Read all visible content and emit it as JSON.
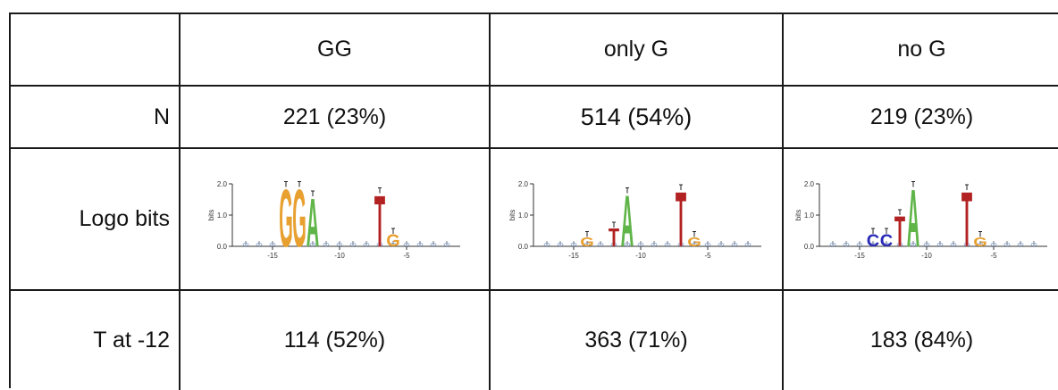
{
  "table": {
    "columns": [
      "",
      "GG",
      "only G",
      "no G"
    ],
    "rows": [
      {
        "label": "N",
        "values": [
          "221 (23%)",
          "514 (54%)",
          "219 (23%)"
        ]
      },
      {
        "label": "Logo bits",
        "values": [
          "",
          "",
          ""
        ]
      },
      {
        "label": "T at -12",
        "values": [
          "114 (52%)",
          "363 (71%)",
          "183 (84%)"
        ]
      }
    ]
  },
  "logos": [
    {
      "name": "GG",
      "ylabel": "bits",
      "yticks": [
        "0.0",
        "1.0",
        "2.0"
      ],
      "xticks": [
        "-15",
        "-10",
        "-5"
      ],
      "letters": [
        {
          "char": "G",
          "pos": -14,
          "height": 1.9,
          "color": "#e8a030"
        },
        {
          "char": "G",
          "pos": -13,
          "height": 1.9,
          "color": "#e8a030"
        },
        {
          "char": "A",
          "pos": -12,
          "height": 1.6,
          "color": "#5fb548"
        },
        {
          "char": "T",
          "pos": -7,
          "height": 1.7,
          "color": "#b22222"
        },
        {
          "char": "G",
          "pos": -6,
          "height": 0.4,
          "color": "#e8a030"
        }
      ]
    },
    {
      "name": "only G",
      "ylabel": "bits",
      "yticks": [
        "0.0",
        "1.0",
        "2.0"
      ],
      "xticks": [
        "-15",
        "-10",
        "-5"
      ],
      "letters": [
        {
          "char": "G",
          "pos": -14,
          "height": 0.3,
          "color": "#e8a030"
        },
        {
          "char": "T",
          "pos": -12,
          "height": 0.6,
          "color": "#b22222"
        },
        {
          "char": "A",
          "pos": -11,
          "height": 1.7,
          "color": "#5fb548"
        },
        {
          "char": "T",
          "pos": -7,
          "height": 1.8,
          "color": "#b22222"
        },
        {
          "char": "G",
          "pos": -6,
          "height": 0.3,
          "color": "#e8a030"
        }
      ]
    },
    {
      "name": "no G",
      "ylabel": "bits",
      "yticks": [
        "0.0",
        "1.0",
        "2.0"
      ],
      "xticks": [
        "-15",
        "-10",
        "-5"
      ],
      "letters": [
        {
          "char": "C",
          "pos": -14,
          "height": 0.4,
          "color": "#2a2ab8"
        },
        {
          "char": "C",
          "pos": -13,
          "height": 0.4,
          "color": "#2a2ab8"
        },
        {
          "char": "T",
          "pos": -12,
          "height": 1.0,
          "color": "#b22222"
        },
        {
          "char": "A",
          "pos": -11,
          "height": 1.9,
          "color": "#5fb548"
        },
        {
          "char": "T",
          "pos": -7,
          "height": 1.8,
          "color": "#b22222"
        },
        {
          "char": "G",
          "pos": -6,
          "height": 0.3,
          "color": "#e8a030"
        }
      ]
    }
  ]
}
